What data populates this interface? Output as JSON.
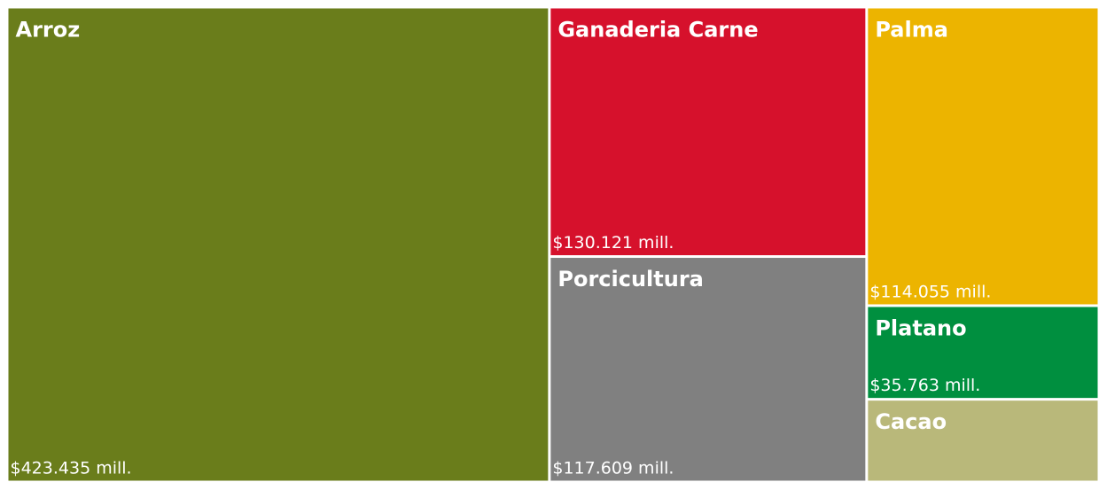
{
  "chart_data": {
    "type": "treemap",
    "categories": [
      "Arroz",
      "Ganaderia Carne",
      "Porcicultura",
      "Palma",
      "Platano",
      "Cacao"
    ],
    "values": [
      423.435,
      130.121,
      117.609,
      114.055,
      35.763,
      31.6
    ],
    "value_labels": [
      "$423.435 mill.",
      "$130.121 mill.",
      "$117.609 mill.",
      "$114.055 mill.",
      "$35.763 mill.",
      null
    ],
    "colors": [
      "#6a7d1b",
      "#d6112c",
      "#808080",
      "#ecb400",
      "#008f3f",
      "#b9b87a"
    ]
  }
}
